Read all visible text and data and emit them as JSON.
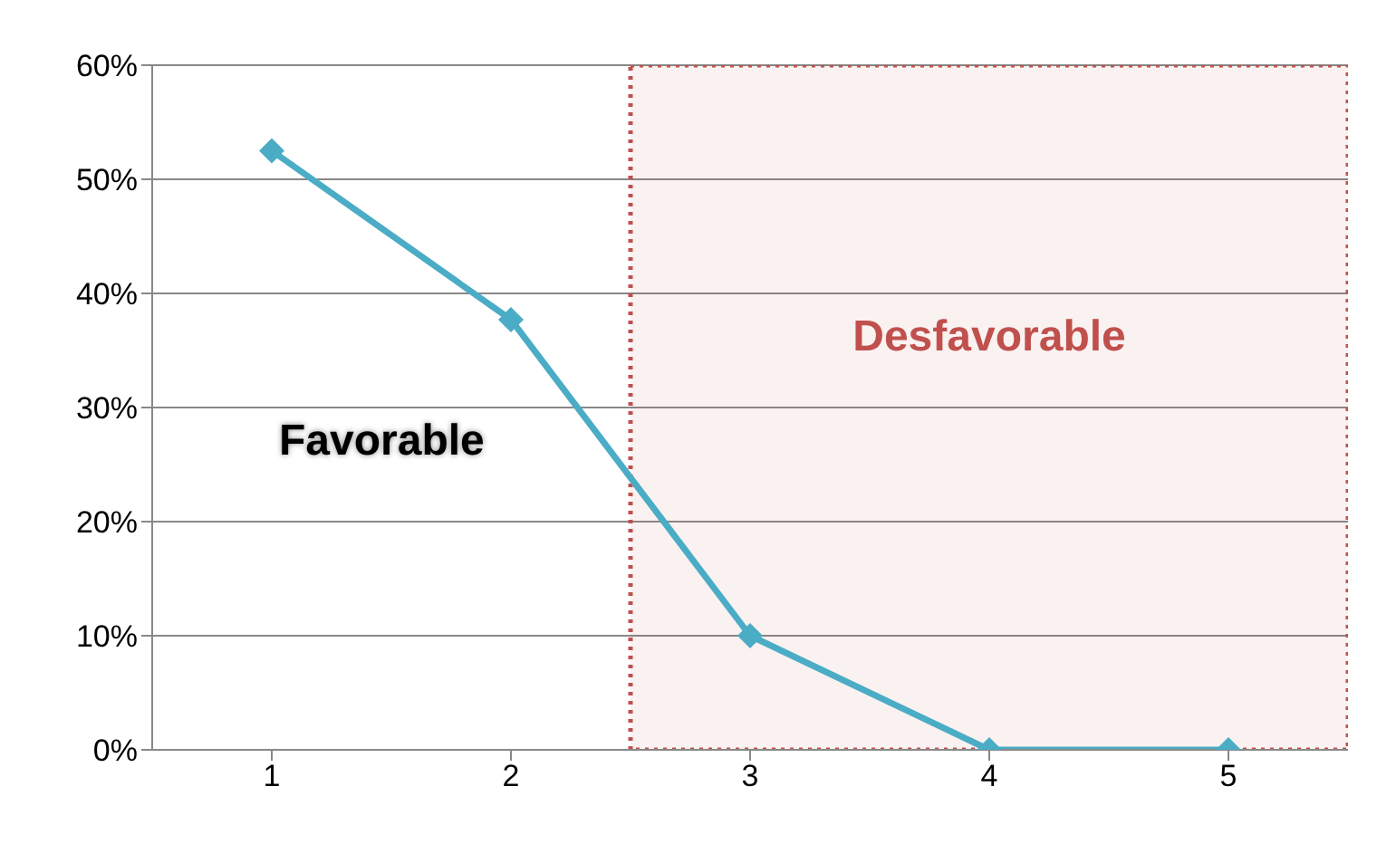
{
  "chart_data": {
    "type": "line",
    "x": [
      1,
      2,
      3,
      4,
      5
    ],
    "series": [
      {
        "color": "#4bacc6",
        "values": [
          52.5,
          37.7,
          10,
          0,
          0
        ]
      }
    ],
    "xlim": [
      0.5,
      5.5
    ],
    "xticks": [
      1,
      2,
      3,
      4,
      5
    ],
    "ylim": [
      0,
      60
    ],
    "yticks": [
      {
        "value": 0,
        "label": "0%"
      },
      {
        "value": 10,
        "label": "10%"
      },
      {
        "value": 20,
        "label": "20%"
      },
      {
        "value": 30,
        "label": "30%"
      },
      {
        "value": 40,
        "label": "40%"
      },
      {
        "value": 50,
        "label": "50%"
      },
      {
        "value": 60,
        "label": "60%"
      }
    ],
    "grid": "y",
    "marker": "diamond",
    "line_style": "solid",
    "legend": false,
    "bands": [
      {
        "axis": "x",
        "from": 2.5,
        "to": 5.5,
        "label": "Desfavorable",
        "color": "#c0504d"
      }
    ],
    "annotations": [
      "Favorable"
    ]
  }
}
